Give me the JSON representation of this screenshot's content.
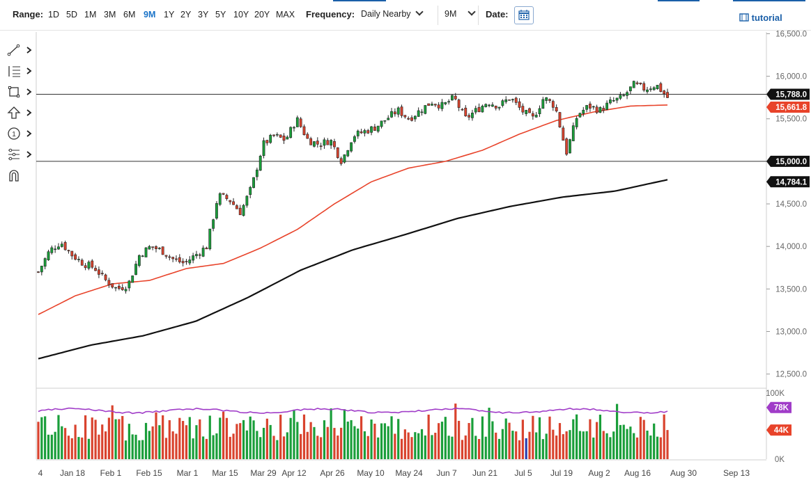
{
  "toolbar": {
    "range_label": "Range:",
    "ranges": [
      "1D",
      "5D",
      "1M",
      "3M",
      "6M",
      "9M",
      "1Y",
      "2Y",
      "3Y",
      "5Y",
      "10Y",
      "20Y",
      "MAX"
    ],
    "active_range": "9M",
    "frequency_label": "Frequency:",
    "frequency_value": "Daily Nearby",
    "period_value": "9M",
    "date_label": "Date:",
    "tutorial_label": "tutorial"
  },
  "drawing_tools": [
    "trendline-icon",
    "fibonacci-icon",
    "rectangle-icon",
    "arrow-up-icon",
    "numbered-marker-icon",
    "pitchfork-icon",
    "magnet-icon"
  ],
  "colors": {
    "up": "#1a9e3a",
    "down": "#d9432e",
    "ma50": "#e8432a",
    "ma200": "#111111",
    "volume_avg": "#a03cc8",
    "volume_highlight": "#2a3fb0",
    "label_bg": "#111111",
    "ma50_label_bg": "#e8432a",
    "vol_avg_label_bg": "#a03cc8",
    "vol_last_label_bg": "#e8432a"
  },
  "chart_data": {
    "type": "candlestick",
    "x_tick_labels": [
      "4",
      "Jan 18",
      "Feb 1",
      "Feb 15",
      "Mar 1",
      "Mar 15",
      "Mar 29",
      "Apr 12",
      "Apr 26",
      "May 10",
      "May 24",
      "Jun 7",
      "Jun 21",
      "Jul 5",
      "Jul 19",
      "Aug 2",
      "Aug 16",
      "Aug 30",
      "Sep 13"
    ],
    "y_tick_labels": [
      "12,500.0",
      "13,000.0",
      "13,500.0",
      "14,000.0",
      "14,500.0",
      "15,000.0",
      "15,500.0",
      "16,000.0",
      "16,500.0"
    ],
    "ylim": [
      12350,
      16520
    ],
    "last_label": "15,788.0",
    "ma50_label": "15,661.8",
    "level_labels": [
      "15,000.0",
      "14,784.1"
    ],
    "horizontal_levels": [
      15788,
      15000
    ],
    "close_path": [
      13700,
      13950,
      14050,
      13900,
      13800,
      13750,
      13600,
      13500,
      13550,
      13900,
      14000,
      13950,
      13850,
      13800,
      13900,
      14000,
      14600,
      14550,
      14400,
      14700,
      15200,
      15300,
      15250,
      15500,
      15250,
      15200,
      15250,
      15000,
      15300,
      15350,
      15400,
      15500,
      15600,
      15500,
      15600,
      15700,
      15650,
      15750,
      15500,
      15600,
      15700,
      15650,
      15750,
      15600,
      15500,
      15750,
      15650,
      15100,
      15550,
      15650,
      15600,
      15700,
      15750,
      15900,
      15850,
      15900,
      15750
    ],
    "ma50_path": [
      13200,
      13420,
      13560,
      13600,
      13740,
      13800,
      13980,
      14200,
      14500,
      14760,
      14920,
      15000,
      15130,
      15320,
      15480,
      15580,
      15650,
      15662
    ],
    "ma200_path": [
      12680,
      12840,
      12950,
      13120,
      13400,
      13720,
      13960,
      14140,
      14330,
      14470,
      14580,
      14650,
      14784
    ],
    "volume": {
      "y_tick_labels": [
        "100K",
        "0K"
      ],
      "ylim": [
        0,
        105000
      ],
      "avg_label": "78K",
      "last_label": "44K"
    }
  }
}
